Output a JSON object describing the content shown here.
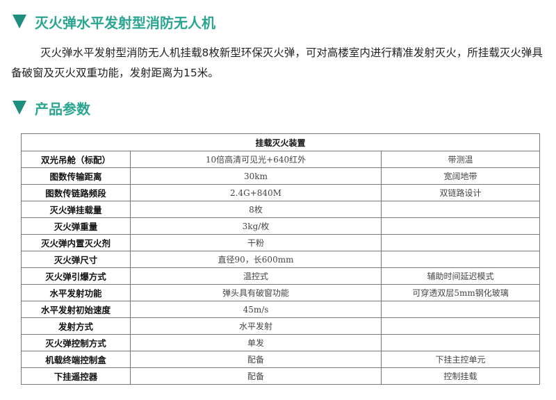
{
  "title": "灭火弹水平发射型消防无人机",
  "description": "灭火弹水平发射型消防无人机挂载8枚新型环保灭火弹，可对高楼室内进行精准发射灭火，所挂载灭火弹具备破窗及灭火双重功能，发射距离为15米。",
  "params_heading": "产品参数",
  "table": {
    "header": "挂载灭火装置",
    "rows": [
      {
        "name": "双光吊舱（标配）",
        "value": "10倍高清可见光+640红外",
        "note": "带测温"
      },
      {
        "name": "图数传输距离",
        "value": "30km",
        "note": "宽阔地带"
      },
      {
        "name": "图数传链路频段",
        "value": "2.4G+840M",
        "note": "双链路设计"
      },
      {
        "name": "灭火弹挂载量",
        "value": "8枚",
        "note": ""
      },
      {
        "name": "灭火弹重量",
        "value": "3kg/枚",
        "note": ""
      },
      {
        "name": "灭火弹内置灭火剂",
        "value": "干粉",
        "note": ""
      },
      {
        "name": "灭火弹尺寸",
        "value": "直径90，长600mm",
        "note": ""
      },
      {
        "name": "灭火弹引爆方式",
        "value": "温控式",
        "note": "辅助时间延迟模式"
      },
      {
        "name": "水平发射功能",
        "value": "弹头具有破窗功能",
        "note": "可穿透双层5mm钢化玻璃"
      },
      {
        "name": "水平发射初始速度",
        "value": "45m/s",
        "note": ""
      },
      {
        "name": "发射方式",
        "value": "水平发射",
        "note": ""
      },
      {
        "name": "灭火弹控制方式",
        "value": "单发",
        "note": ""
      },
      {
        "name": "机载终端控制盒",
        "value": "配备",
        "note": "下挂主控单元"
      },
      {
        "name": "下挂遥控器",
        "value": "配备",
        "note": "控制挂载"
      }
    ]
  }
}
